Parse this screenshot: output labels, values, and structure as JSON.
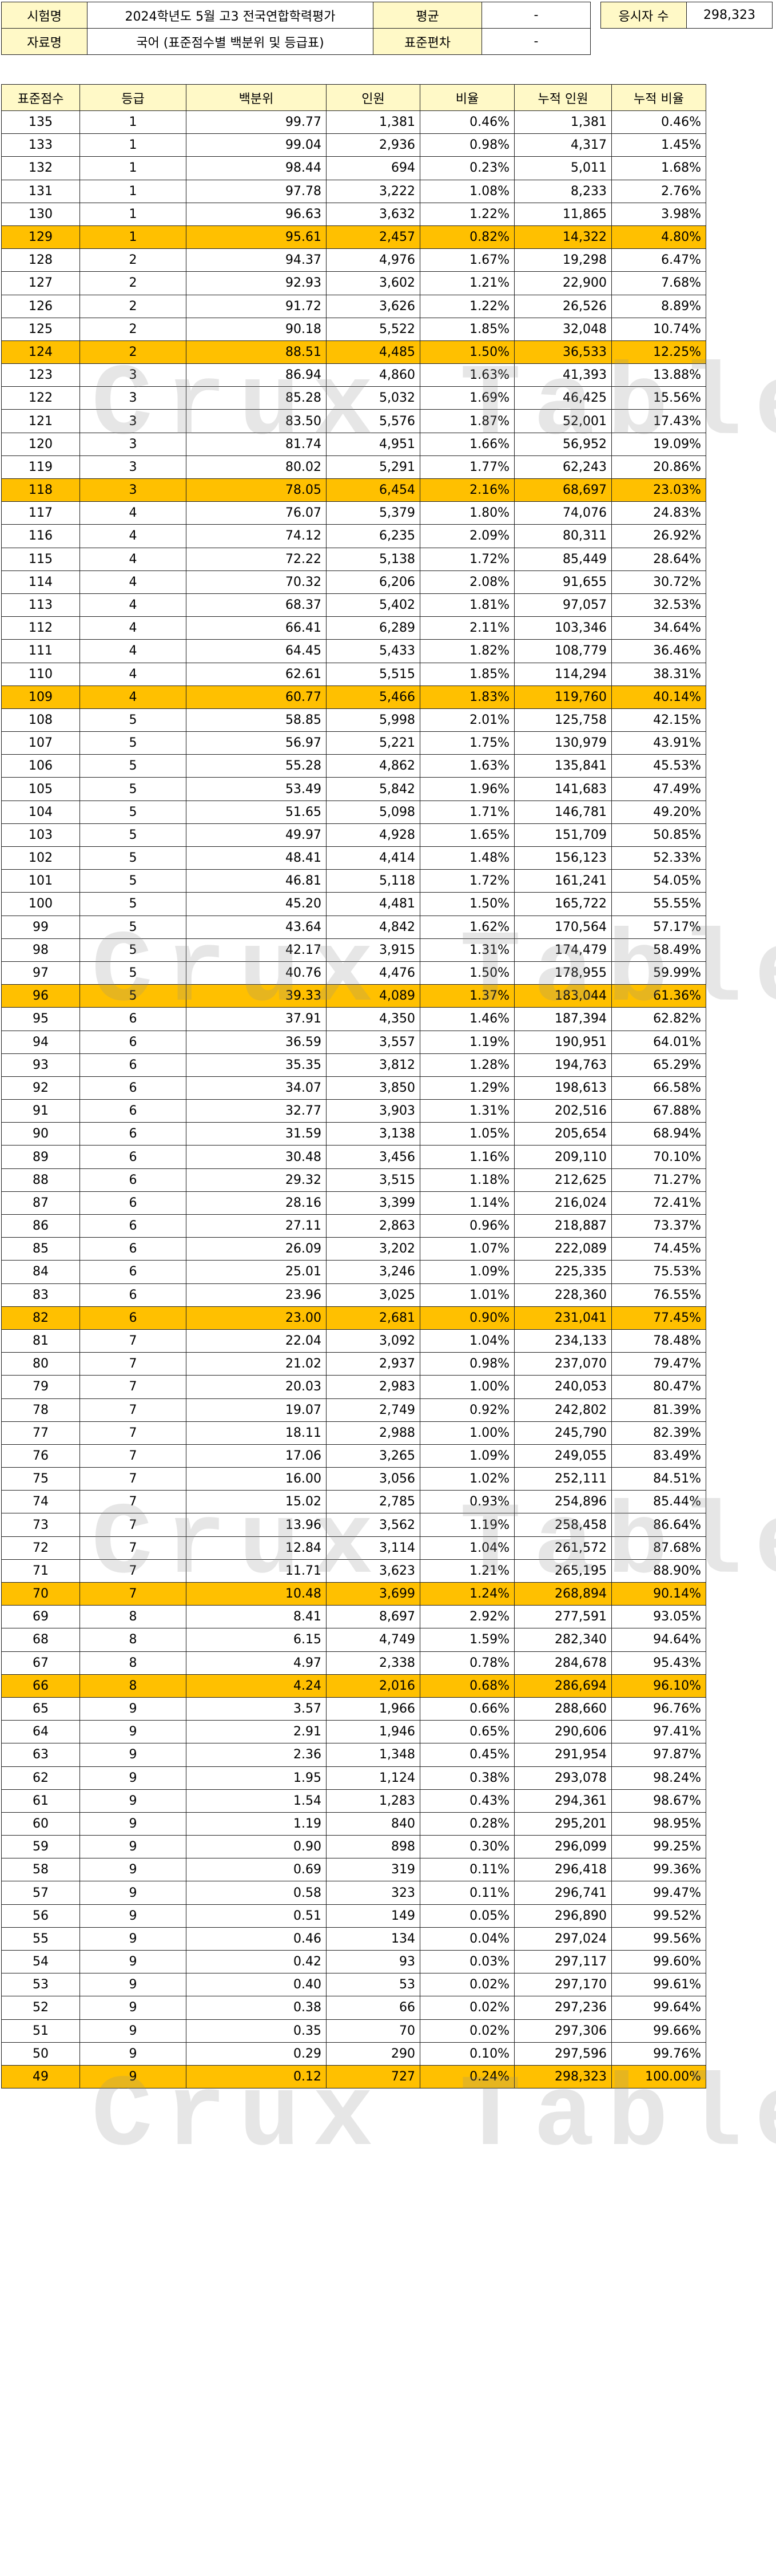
{
  "header": {
    "exam_label": "시험명",
    "exam_value": "2024학년도 5월 고3 전국연합학력평가",
    "doc_label": "자료명",
    "doc_value": "국어 (표준점수별 백분위 및 등급표)",
    "mean_label": "평균",
    "mean_value": "-",
    "sd_label": "표준편차",
    "sd_value": "-",
    "takers_label": "응시자 수",
    "takers_value": "298,323"
  },
  "columns": [
    "표준점수",
    "등급",
    "백분위",
    "인원",
    "비율",
    "누적 인원",
    "누적 비율"
  ],
  "rows": [
    [
      "135",
      "1",
      "99.77",
      "1,381",
      "0.46%",
      "1,381",
      "0.46%"
    ],
    [
      "133",
      "1",
      "99.04",
      "2,936",
      "0.98%",
      "4,317",
      "1.45%"
    ],
    [
      "132",
      "1",
      "98.44",
      "694",
      "0.23%",
      "5,011",
      "1.68%"
    ],
    [
      "131",
      "1",
      "97.78",
      "3,222",
      "1.08%",
      "8,233",
      "2.76%"
    ],
    [
      "130",
      "1",
      "96.63",
      "3,632",
      "1.22%",
      "11,865",
      "3.98%"
    ],
    [
      "129",
      "1",
      "95.61",
      "2,457",
      "0.82%",
      "14,322",
      "4.80%"
    ],
    [
      "128",
      "2",
      "94.37",
      "4,976",
      "1.67%",
      "19,298",
      "6.47%"
    ],
    [
      "127",
      "2",
      "92.93",
      "3,602",
      "1.21%",
      "22,900",
      "7.68%"
    ],
    [
      "126",
      "2",
      "91.72",
      "3,626",
      "1.22%",
      "26,526",
      "8.89%"
    ],
    [
      "125",
      "2",
      "90.18",
      "5,522",
      "1.85%",
      "32,048",
      "10.74%"
    ],
    [
      "124",
      "2",
      "88.51",
      "4,485",
      "1.50%",
      "36,533",
      "12.25%"
    ],
    [
      "123",
      "3",
      "86.94",
      "4,860",
      "1.63%",
      "41,393",
      "13.88%"
    ],
    [
      "122",
      "3",
      "85.28",
      "5,032",
      "1.69%",
      "46,425",
      "15.56%"
    ],
    [
      "121",
      "3",
      "83.50",
      "5,576",
      "1.87%",
      "52,001",
      "17.43%"
    ],
    [
      "120",
      "3",
      "81.74",
      "4,951",
      "1.66%",
      "56,952",
      "19.09%"
    ],
    [
      "119",
      "3",
      "80.02",
      "5,291",
      "1.77%",
      "62,243",
      "20.86%"
    ],
    [
      "118",
      "3",
      "78.05",
      "6,454",
      "2.16%",
      "68,697",
      "23.03%"
    ],
    [
      "117",
      "4",
      "76.07",
      "5,379",
      "1.80%",
      "74,076",
      "24.83%"
    ],
    [
      "116",
      "4",
      "74.12",
      "6,235",
      "2.09%",
      "80,311",
      "26.92%"
    ],
    [
      "115",
      "4",
      "72.22",
      "5,138",
      "1.72%",
      "85,449",
      "28.64%"
    ],
    [
      "114",
      "4",
      "70.32",
      "6,206",
      "2.08%",
      "91,655",
      "30.72%"
    ],
    [
      "113",
      "4",
      "68.37",
      "5,402",
      "1.81%",
      "97,057",
      "32.53%"
    ],
    [
      "112",
      "4",
      "66.41",
      "6,289",
      "2.11%",
      "103,346",
      "34.64%"
    ],
    [
      "111",
      "4",
      "64.45",
      "5,433",
      "1.82%",
      "108,779",
      "36.46%"
    ],
    [
      "110",
      "4",
      "62.61",
      "5,515",
      "1.85%",
      "114,294",
      "38.31%"
    ],
    [
      "109",
      "4",
      "60.77",
      "5,466",
      "1.83%",
      "119,760",
      "40.14%"
    ],
    [
      "108",
      "5",
      "58.85",
      "5,998",
      "2.01%",
      "125,758",
      "42.15%"
    ],
    [
      "107",
      "5",
      "56.97",
      "5,221",
      "1.75%",
      "130,979",
      "43.91%"
    ],
    [
      "106",
      "5",
      "55.28",
      "4,862",
      "1.63%",
      "135,841",
      "45.53%"
    ],
    [
      "105",
      "5",
      "53.49",
      "5,842",
      "1.96%",
      "141,683",
      "47.49%"
    ],
    [
      "104",
      "5",
      "51.65",
      "5,098",
      "1.71%",
      "146,781",
      "49.20%"
    ],
    [
      "103",
      "5",
      "49.97",
      "4,928",
      "1.65%",
      "151,709",
      "50.85%"
    ],
    [
      "102",
      "5",
      "48.41",
      "4,414",
      "1.48%",
      "156,123",
      "52.33%"
    ],
    [
      "101",
      "5",
      "46.81",
      "5,118",
      "1.72%",
      "161,241",
      "54.05%"
    ],
    [
      "100",
      "5",
      "45.20",
      "4,481",
      "1.50%",
      "165,722",
      "55.55%"
    ],
    [
      "99",
      "5",
      "43.64",
      "4,842",
      "1.62%",
      "170,564",
      "57.17%"
    ],
    [
      "98",
      "5",
      "42.17",
      "3,915",
      "1.31%",
      "174,479",
      "58.49%"
    ],
    [
      "97",
      "5",
      "40.76",
      "4,476",
      "1.50%",
      "178,955",
      "59.99%"
    ],
    [
      "96",
      "5",
      "39.33",
      "4,089",
      "1.37%",
      "183,044",
      "61.36%"
    ],
    [
      "95",
      "6",
      "37.91",
      "4,350",
      "1.46%",
      "187,394",
      "62.82%"
    ],
    [
      "94",
      "6",
      "36.59",
      "3,557",
      "1.19%",
      "190,951",
      "64.01%"
    ],
    [
      "93",
      "6",
      "35.35",
      "3,812",
      "1.28%",
      "194,763",
      "65.29%"
    ],
    [
      "92",
      "6",
      "34.07",
      "3,850",
      "1.29%",
      "198,613",
      "66.58%"
    ],
    [
      "91",
      "6",
      "32.77",
      "3,903",
      "1.31%",
      "202,516",
      "67.88%"
    ],
    [
      "90",
      "6",
      "31.59",
      "3,138",
      "1.05%",
      "205,654",
      "68.94%"
    ],
    [
      "89",
      "6",
      "30.48",
      "3,456",
      "1.16%",
      "209,110",
      "70.10%"
    ],
    [
      "88",
      "6",
      "29.32",
      "3,515",
      "1.18%",
      "212,625",
      "71.27%"
    ],
    [
      "87",
      "6",
      "28.16",
      "3,399",
      "1.14%",
      "216,024",
      "72.41%"
    ],
    [
      "86",
      "6",
      "27.11",
      "2,863",
      "0.96%",
      "218,887",
      "73.37%"
    ],
    [
      "85",
      "6",
      "26.09",
      "3,202",
      "1.07%",
      "222,089",
      "74.45%"
    ],
    [
      "84",
      "6",
      "25.01",
      "3,246",
      "1.09%",
      "225,335",
      "75.53%"
    ],
    [
      "83",
      "6",
      "23.96",
      "3,025",
      "1.01%",
      "228,360",
      "76.55%"
    ],
    [
      "82",
      "6",
      "23.00",
      "2,681",
      "0.90%",
      "231,041",
      "77.45%"
    ],
    [
      "81",
      "7",
      "22.04",
      "3,092",
      "1.04%",
      "234,133",
      "78.48%"
    ],
    [
      "80",
      "7",
      "21.02",
      "2,937",
      "0.98%",
      "237,070",
      "79.47%"
    ],
    [
      "79",
      "7",
      "20.03",
      "2,983",
      "1.00%",
      "240,053",
      "80.47%"
    ],
    [
      "78",
      "7",
      "19.07",
      "2,749",
      "0.92%",
      "242,802",
      "81.39%"
    ],
    [
      "77",
      "7",
      "18.11",
      "2,988",
      "1.00%",
      "245,790",
      "82.39%"
    ],
    [
      "76",
      "7",
      "17.06",
      "3,265",
      "1.09%",
      "249,055",
      "83.49%"
    ],
    [
      "75",
      "7",
      "16.00",
      "3,056",
      "1.02%",
      "252,111",
      "84.51%"
    ],
    [
      "74",
      "7",
      "15.02",
      "2,785",
      "0.93%",
      "254,896",
      "85.44%"
    ],
    [
      "73",
      "7",
      "13.96",
      "3,562",
      "1.19%",
      "258,458",
      "86.64%"
    ],
    [
      "72",
      "7",
      "12.84",
      "3,114",
      "1.04%",
      "261,572",
      "87.68%"
    ],
    [
      "71",
      "7",
      "11.71",
      "3,623",
      "1.21%",
      "265,195",
      "88.90%"
    ],
    [
      "70",
      "7",
      "10.48",
      "3,699",
      "1.24%",
      "268,894",
      "90.14%"
    ],
    [
      "69",
      "8",
      "8.41",
      "8,697",
      "2.92%",
      "277,591",
      "93.05%"
    ],
    [
      "68",
      "8",
      "6.15",
      "4,749",
      "1.59%",
      "282,340",
      "94.64%"
    ],
    [
      "67",
      "8",
      "4.97",
      "2,338",
      "0.78%",
      "284,678",
      "95.43%"
    ],
    [
      "66",
      "8",
      "4.24",
      "2,016",
      "0.68%",
      "286,694",
      "96.10%"
    ],
    [
      "65",
      "9",
      "3.57",
      "1,966",
      "0.66%",
      "288,660",
      "96.76%"
    ],
    [
      "64",
      "9",
      "2.91",
      "1,946",
      "0.65%",
      "290,606",
      "97.41%"
    ],
    [
      "63",
      "9",
      "2.36",
      "1,348",
      "0.45%",
      "291,954",
      "97.87%"
    ],
    [
      "62",
      "9",
      "1.95",
      "1,124",
      "0.38%",
      "293,078",
      "98.24%"
    ],
    [
      "61",
      "9",
      "1.54",
      "1,283",
      "0.43%",
      "294,361",
      "98.67%"
    ],
    [
      "60",
      "9",
      "1.19",
      "840",
      "0.28%",
      "295,201",
      "98.95%"
    ],
    [
      "59",
      "9",
      "0.90",
      "898",
      "0.30%",
      "296,099",
      "99.25%"
    ],
    [
      "58",
      "9",
      "0.69",
      "319",
      "0.11%",
      "296,418",
      "99.36%"
    ],
    [
      "57",
      "9",
      "0.58",
      "323",
      "0.11%",
      "296,741",
      "99.47%"
    ],
    [
      "56",
      "9",
      "0.51",
      "149",
      "0.05%",
      "296,890",
      "99.52%"
    ],
    [
      "55",
      "9",
      "0.46",
      "134",
      "0.04%",
      "297,024",
      "99.56%"
    ],
    [
      "54",
      "9",
      "0.42",
      "93",
      "0.03%",
      "297,117",
      "99.60%"
    ],
    [
      "53",
      "9",
      "0.40",
      "53",
      "0.02%",
      "297,170",
      "99.61%"
    ],
    [
      "52",
      "9",
      "0.38",
      "66",
      "0.02%",
      "297,236",
      "99.64%"
    ],
    [
      "51",
      "9",
      "0.35",
      "70",
      "0.02%",
      "297,306",
      "99.66%"
    ],
    [
      "50",
      "9",
      "0.29",
      "290",
      "0.10%",
      "297,596",
      "99.76%"
    ],
    [
      "49",
      "9",
      "0.12",
      "727",
      "0.24%",
      "298,323",
      "100.00%"
    ]
  ],
  "highlight_scores": [
    "129",
    "124",
    "118",
    "109",
    "96",
    "82",
    "70",
    "66",
    "49"
  ],
  "watermark": "Crux Table",
  "colors": {
    "label_bg": "#fff9c7",
    "highlight_bg": "#ffc000",
    "border": "#222222"
  }
}
